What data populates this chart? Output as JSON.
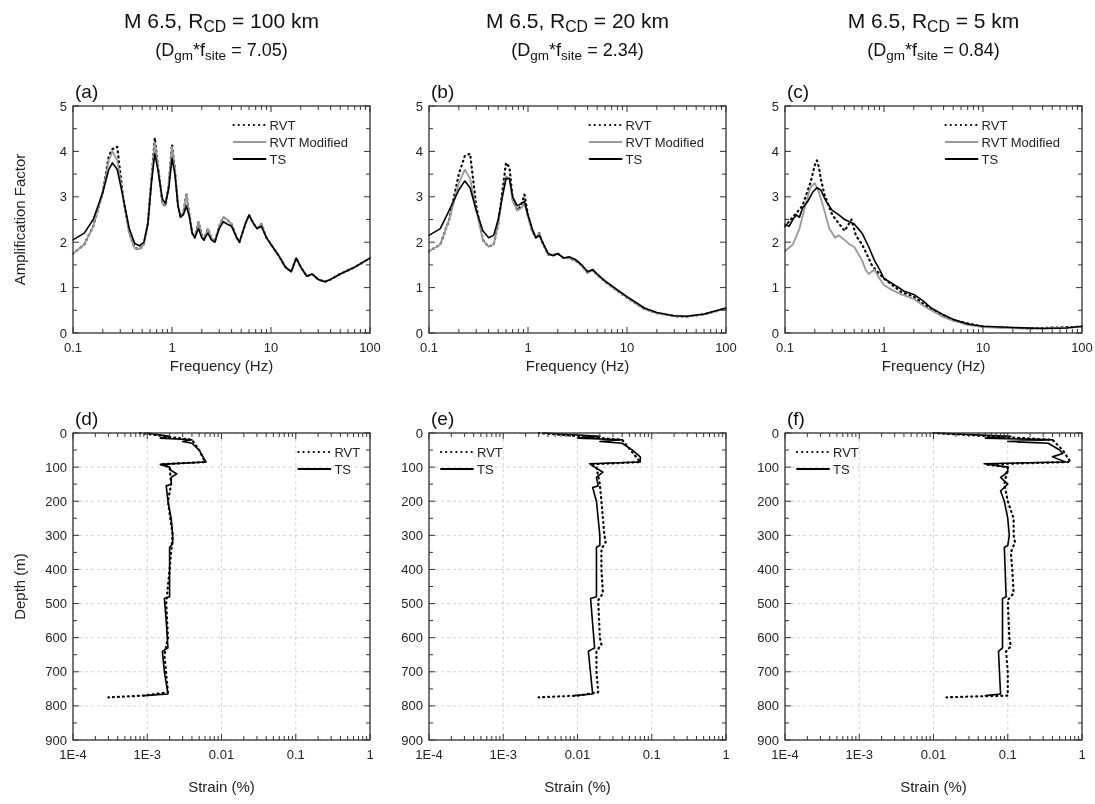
{
  "chart_data": [
    {
      "type": "line",
      "title": "M 6.5, R$_{CD}$ = 100 km",
      "subtitle": "(D$_{gm}$*f$_{site}$ = 7.05)",
      "annotations": [
        "(a)"
      ],
      "xlabel": "Frequency (Hz)",
      "ylabel": "Amplification Factor",
      "log": "x",
      "legend": "top right",
      "xlim": [
        0.1,
        100
      ],
      "ylim": [
        0,
        5
      ],
      "xticks": [
        0.1,
        {
          "value": 0.2,
          "label": null
        },
        {
          "value": 0.3,
          "label": null
        },
        {
          "value": 0.4,
          "label": null
        },
        {
          "value": 0.5,
          "label": null
        },
        {
          "value": 0.6,
          "label": null
        },
        {
          "value": 0.7,
          "label": null
        },
        {
          "value": 0.8,
          "label": null
        },
        {
          "value": 0.9,
          "label": null
        },
        1,
        {
          "value": 2,
          "label": null
        },
        {
          "value": 3,
          "label": null
        },
        {
          "value": 4,
          "label": null
        },
        {
          "value": 5,
          "label": null
        },
        {
          "value": 6,
          "label": null
        },
        {
          "value": 7,
          "label": null
        },
        {
          "value": 8,
          "label": null
        },
        {
          "value": 9,
          "label": null
        },
        10,
        {
          "value": 20,
          "label": null
        },
        {
          "value": 30,
          "label": null
        },
        {
          "value": 40,
          "label": null
        },
        {
          "value": 50,
          "label": null
        },
        {
          "value": 60,
          "label": null
        },
        {
          "value": 70,
          "label": null
        },
        {
          "value": 80,
          "label": null
        },
        {
          "value": 90,
          "label": null
        },
        100
      ],
      "yticks": [
        0,
        {
          "value": 0.5,
          "label": null
        },
        1,
        {
          "value": 1.5,
          "label": null
        },
        2,
        {
          "value": 2.5,
          "label": null
        },
        3,
        {
          "value": 3.5,
          "label": null
        },
        4,
        {
          "value": 4.5,
          "label": null
        },
        5
      ],
      "series": [
        {
          "name": "RVT",
          "color": "#000000",
          "line_style": "dotted",
          "x": [
            0.1,
            0.13,
            0.16,
            0.2,
            0.23,
            0.25,
            0.28,
            0.32,
            0.37,
            0.42,
            0.47,
            0.52,
            0.57,
            0.62,
            0.67,
            0.72,
            0.8,
            0.86,
            0.93,
            1,
            1.07,
            1.15,
            1.22,
            1.3,
            1.4,
            1.5,
            1.6,
            1.7,
            1.85,
            2,
            2.1,
            2.3,
            2.5,
            2.7,
            3,
            3.3,
            3.6,
            4,
            4.5,
            4.8,
            5.5,
            6,
            6.5,
            7.2,
            8,
            9,
            10,
            12,
            14,
            16,
            18,
            20,
            23,
            26,
            30,
            35,
            40,
            50,
            70,
            100
          ],
          "values": [
            1.75,
            1.95,
            2.35,
            3.1,
            3.9,
            4.05,
            4.1,
            3.0,
            2.2,
            1.87,
            1.85,
            1.95,
            2.4,
            3.4,
            4.3,
            3.7,
            2.85,
            2.8,
            3.3,
            4.15,
            3.6,
            2.8,
            2.55,
            2.65,
            3.05,
            2.6,
            2.2,
            2.1,
            2.45,
            2.15,
            2.05,
            2.3,
            2.1,
            2.0,
            2.35,
            2.55,
            2.5,
            2.4,
            2.1,
            2.0,
            2.4,
            2.6,
            2.45,
            2.3,
            2.4,
            2.1,
            1.95,
            1.7,
            1.45,
            1.35,
            1.65,
            1.45,
            1.25,
            1.3,
            1.18,
            1.13,
            1.18,
            1.3,
            1.45,
            1.65
          ]
        },
        {
          "name": "RVT Modified",
          "color": "#999999",
          "line_style": "solid",
          "x": [
            0.1,
            0.13,
            0.16,
            0.2,
            0.23,
            0.25,
            0.28,
            0.32,
            0.37,
            0.42,
            0.47,
            0.52,
            0.57,
            0.62,
            0.67,
            0.72,
            0.8,
            0.86,
            0.93,
            1,
            1.07,
            1.15,
            1.22,
            1.3,
            1.4,
            1.5,
            1.6,
            1.7,
            1.85,
            2,
            2.1,
            2.3,
            2.5,
            2.7,
            3,
            3.3,
            3.6,
            4,
            4.5,
            4.8,
            5.5,
            6,
            6.5,
            7.2,
            8,
            9,
            10,
            12,
            14,
            16,
            18,
            20,
            23,
            26,
            30,
            35,
            40,
            50,
            70,
            100
          ],
          "values": [
            1.75,
            1.95,
            2.35,
            3.1,
            3.8,
            4.0,
            3.8,
            3.0,
            2.2,
            1.87,
            1.85,
            1.95,
            2.4,
            3.4,
            4.2,
            3.7,
            2.85,
            2.8,
            3.3,
            4.1,
            3.6,
            2.8,
            2.55,
            2.65,
            3.05,
            2.6,
            2.2,
            2.1,
            2.45,
            2.15,
            2.05,
            2.3,
            2.1,
            2.0,
            2.35,
            2.55,
            2.5,
            2.4,
            2.1,
            2.0,
            2.4,
            2.6,
            2.45,
            2.3,
            2.4,
            2.1,
            1.95,
            1.7,
            1.45,
            1.35,
            1.65,
            1.45,
            1.25,
            1.3,
            1.18,
            1.13,
            1.18,
            1.3,
            1.45,
            1.65
          ]
        },
        {
          "name": "TS",
          "color": "#000000",
          "line_style": "solid",
          "x": [
            0.1,
            0.13,
            0.16,
            0.2,
            0.23,
            0.25,
            0.28,
            0.32,
            0.37,
            0.42,
            0.47,
            0.52,
            0.57,
            0.62,
            0.67,
            0.72,
            0.8,
            0.86,
            0.93,
            1,
            1.07,
            1.15,
            1.22,
            1.3,
            1.4,
            1.5,
            1.6,
            1.7,
            1.85,
            2,
            2.1,
            2.3,
            2.5,
            2.7,
            3,
            3.3,
            3.6,
            4,
            4.5,
            4.8,
            5.5,
            6,
            6.5,
            7.2,
            8,
            9,
            10,
            12,
            14,
            16,
            18,
            20,
            23,
            26,
            30,
            35,
            40,
            50,
            70,
            100
          ],
          "values": [
            2.05,
            2.2,
            2.5,
            3.1,
            3.6,
            3.75,
            3.6,
            3.0,
            2.3,
            1.97,
            1.92,
            2.0,
            2.4,
            3.3,
            3.95,
            3.6,
            2.95,
            2.85,
            3.2,
            3.85,
            3.5,
            2.8,
            2.55,
            2.6,
            2.8,
            2.55,
            2.2,
            2.1,
            2.3,
            2.1,
            2.05,
            2.2,
            2.05,
            2.0,
            2.3,
            2.45,
            2.4,
            2.35,
            2.1,
            2.0,
            2.4,
            2.6,
            2.45,
            2.3,
            2.35,
            2.1,
            1.95,
            1.7,
            1.45,
            1.35,
            1.65,
            1.45,
            1.25,
            1.3,
            1.18,
            1.13,
            1.18,
            1.3,
            1.45,
            1.65
          ]
        }
      ]
    },
    {
      "type": "line",
      "title": "M 6.5, R$_{CD}$ = 20 km",
      "subtitle": "(D$_{gm}$*f$_{site}$ = 2.34)",
      "annotations": [
        "(b)"
      ],
      "xlabel": "Frequency (Hz)",
      "log": "x",
      "legend": "top right",
      "xlim": [
        0.1,
        100
      ],
      "ylim": [
        0,
        5
      ],
      "xticks": [
        0.1,
        {
          "value": 0.2,
          "label": null
        },
        {
          "value": 0.3,
          "label": null
        },
        {
          "value": 0.4,
          "label": null
        },
        {
          "value": 0.5,
          "label": null
        },
        {
          "value": 0.6,
          "label": null
        },
        {
          "value": 0.7,
          "label": null
        },
        {
          "value": 0.8,
          "label": null
        },
        {
          "value": 0.9,
          "label": null
        },
        1,
        {
          "value": 2,
          "label": null
        },
        {
          "value": 3,
          "label": null
        },
        {
          "value": 4,
          "label": null
        },
        {
          "value": 5,
          "label": null
        },
        {
          "value": 6,
          "label": null
        },
        {
          "value": 7,
          "label": null
        },
        {
          "value": 8,
          "label": null
        },
        {
          "value": 9,
          "label": null
        },
        10,
        {
          "value": 20,
          "label": null
        },
        {
          "value": 30,
          "label": null
        },
        {
          "value": 40,
          "label": null
        },
        {
          "value": 50,
          "label": null
        },
        {
          "value": 60,
          "label": null
        },
        {
          "value": 70,
          "label": null
        },
        {
          "value": 80,
          "label": null
        },
        {
          "value": 90,
          "label": null
        },
        100
      ],
      "yticks": [
        0,
        {
          "value": 0.5,
          "label": null
        },
        1,
        {
          "value": 1.5,
          "label": null
        },
        2,
        {
          "value": 2.5,
          "label": null
        },
        3,
        {
          "value": 3.5,
          "label": null
        },
        4,
        {
          "value": 4.5,
          "label": null
        },
        5
      ],
      "series": [
        {
          "name": "RVT",
          "color": "#000000",
          "line_style": "dotted",
          "x": [
            0.1,
            0.13,
            0.16,
            0.2,
            0.23,
            0.26,
            0.3,
            0.35,
            0.4,
            0.45,
            0.5,
            0.55,
            0.6,
            0.65,
            0.7,
            0.78,
            0.85,
            0.92,
            1,
            1.1,
            1.2,
            1.3,
            1.4,
            1.6,
            1.8,
            2,
            2.3,
            2.6,
            3,
            3.5,
            4,
            4.5,
            5,
            6,
            8,
            10,
            15,
            20,
            30,
            40,
            60,
            100
          ],
          "values": [
            1.8,
            1.95,
            2.5,
            3.5,
            3.9,
            3.95,
            2.8,
            2.05,
            1.9,
            1.95,
            2.4,
            3.1,
            3.75,
            3.65,
            2.95,
            2.7,
            2.8,
            3.05,
            2.6,
            2.25,
            2.1,
            2.2,
            2.0,
            1.72,
            1.72,
            1.75,
            1.65,
            1.65,
            1.6,
            1.48,
            1.33,
            1.38,
            1.28,
            1.13,
            0.93,
            0.78,
            0.53,
            0.44,
            0.37,
            0.36,
            0.41,
            0.54
          ]
        },
        {
          "name": "RVT Modified",
          "color": "#999999",
          "line_style": "solid",
          "x": [
            0.1,
            0.13,
            0.16,
            0.2,
            0.23,
            0.26,
            0.3,
            0.35,
            0.4,
            0.45,
            0.5,
            0.55,
            0.6,
            0.65,
            0.7,
            0.78,
            0.85,
            0.92,
            1,
            1.1,
            1.2,
            1.3,
            1.4,
            1.6,
            1.8,
            2,
            2.3,
            2.6,
            3,
            3.5,
            4,
            4.5,
            5,
            6,
            8,
            10,
            15,
            20,
            30,
            40,
            60,
            100
          ],
          "values": [
            1.8,
            1.95,
            2.5,
            3.3,
            3.6,
            3.4,
            2.7,
            2.05,
            1.9,
            1.95,
            2.4,
            3.0,
            3.45,
            3.4,
            2.9,
            2.7,
            2.75,
            2.85,
            2.55,
            2.25,
            2.1,
            2.2,
            2.0,
            1.72,
            1.72,
            1.75,
            1.65,
            1.65,
            1.6,
            1.48,
            1.33,
            1.38,
            1.28,
            1.13,
            0.93,
            0.78,
            0.53,
            0.44,
            0.37,
            0.36,
            0.41,
            0.54
          ]
        },
        {
          "name": "TS",
          "color": "#000000",
          "line_style": "solid",
          "x": [
            0.1,
            0.13,
            0.16,
            0.2,
            0.23,
            0.26,
            0.3,
            0.35,
            0.4,
            0.45,
            0.5,
            0.55,
            0.6,
            0.65,
            0.7,
            0.78,
            0.85,
            0.92,
            1,
            1.1,
            1.2,
            1.3,
            1.4,
            1.6,
            1.8,
            2,
            2.3,
            2.6,
            3,
            3.5,
            4,
            4.5,
            5,
            6,
            8,
            10,
            15,
            20,
            30,
            40,
            60,
            100
          ],
          "values": [
            2.15,
            2.3,
            2.7,
            3.15,
            3.35,
            3.2,
            2.7,
            2.25,
            2.1,
            2.15,
            2.5,
            3.0,
            3.4,
            3.4,
            3.0,
            2.8,
            2.85,
            2.9,
            2.6,
            2.3,
            2.1,
            2.15,
            2.0,
            1.75,
            1.7,
            1.75,
            1.65,
            1.68,
            1.62,
            1.5,
            1.35,
            1.4,
            1.3,
            1.15,
            0.95,
            0.8,
            0.55,
            0.45,
            0.38,
            0.37,
            0.42,
            0.55
          ]
        }
      ]
    },
    {
      "type": "line",
      "title": "M 6.5, R$_{CD}$ = 5 km",
      "subtitle": "(D$_{gm}$*f$_{site}$ = 0.84)",
      "annotations": [
        "(c)"
      ],
      "xlabel": "Frequency (Hz)",
      "log": "x",
      "legend": "top right",
      "xlim": [
        0.1,
        100
      ],
      "ylim": [
        0,
        5
      ],
      "xticks": [
        0.1,
        {
          "value": 0.2,
          "label": null
        },
        {
          "value": 0.3,
          "label": null
        },
        {
          "value": 0.4,
          "label": null
        },
        {
          "value": 0.5,
          "label": null
        },
        {
          "value": 0.6,
          "label": null
        },
        {
          "value": 0.7,
          "label": null
        },
        {
          "value": 0.8,
          "label": null
        },
        {
          "value": 0.9,
          "label": null
        },
        1,
        {
          "value": 2,
          "label": null
        },
        {
          "value": 3,
          "label": null
        },
        {
          "value": 4,
          "label": null
        },
        {
          "value": 5,
          "label": null
        },
        {
          "value": 6,
          "label": null
        },
        {
          "value": 7,
          "label": null
        },
        {
          "value": 8,
          "label": null
        },
        {
          "value": 9,
          "label": null
        },
        10,
        {
          "value": 20,
          "label": null
        },
        {
          "value": 30,
          "label": null
        },
        {
          "value": 40,
          "label": null
        },
        {
          "value": 50,
          "label": null
        },
        {
          "value": 60,
          "label": null
        },
        {
          "value": 70,
          "label": null
        },
        {
          "value": 80,
          "label": null
        },
        {
          "value": 90,
          "label": null
        },
        100
      ],
      "yticks": [
        0,
        {
          "value": 0.5,
          "label": null
        },
        1,
        {
          "value": 1.5,
          "label": null
        },
        2,
        {
          "value": 2.5,
          "label": null
        },
        3,
        {
          "value": 3.5,
          "label": null
        },
        4,
        {
          "value": 4.5,
          "label": null
        },
        5
      ],
      "series": [
        {
          "name": "RVT",
          "color": "#000000",
          "line_style": "dotted",
          "x": [
            0.1,
            0.15,
            0.18,
            0.19,
            0.2,
            0.21,
            0.22,
            0.23,
            0.25,
            0.3,
            0.4,
            0.47,
            0.52,
            0.6,
            0.7,
            0.75,
            0.9,
            1,
            1.5,
            2,
            3,
            5,
            10,
            30,
            100
          ],
          "values": [
            2.35,
            2.8,
            3.3,
            3.5,
            3.7,
            3.8,
            3.65,
            3.4,
            3.05,
            2.6,
            2.25,
            2.5,
            2.15,
            1.95,
            1.65,
            1.5,
            1.3,
            1.2,
            0.9,
            0.8,
            0.52,
            0.28,
            0.14,
            0.1,
            0.14
          ]
        },
        {
          "name": "RVT Modified",
          "color": "#999999",
          "line_style": "solid",
          "x": [
            0.1,
            0.12,
            0.14,
            0.16,
            0.18,
            0.2,
            0.22,
            0.25,
            0.28,
            0.32,
            0.35,
            0.4,
            0.45,
            0.5,
            0.6,
            0.65,
            0.7,
            0.8,
            0.9,
            1,
            1.2,
            1.5,
            2,
            2.5,
            3,
            4,
            5,
            7,
            10,
            20,
            40,
            100
          ],
          "values": [
            1.8,
            1.95,
            2.3,
            2.8,
            3.2,
            3.3,
            3.1,
            2.7,
            2.3,
            2.1,
            2.15,
            2.05,
            1.95,
            1.9,
            1.6,
            1.4,
            1.3,
            1.4,
            1.2,
            1.05,
            0.95,
            0.85,
            0.75,
            0.6,
            0.5,
            0.35,
            0.27,
            0.18,
            0.13,
            0.1,
            0.1,
            0.13
          ]
        },
        {
          "name": "TS",
          "color": "#000000",
          "line_style": "solid",
          "x": [
            0.1,
            0.11,
            0.12,
            0.13,
            0.14,
            0.15,
            0.17,
            0.19,
            0.21,
            0.23,
            0.26,
            0.3,
            0.35,
            0.4,
            0.45,
            0.5,
            0.6,
            0.7,
            0.8,
            0.9,
            1,
            1.3,
            1.6,
            2,
            2.5,
            3,
            4,
            5,
            7,
            10,
            20,
            40,
            70,
            100
          ],
          "values": [
            2.4,
            2.35,
            2.5,
            2.6,
            2.55,
            2.75,
            2.9,
            3.1,
            3.2,
            3.15,
            2.9,
            2.7,
            2.6,
            2.5,
            2.45,
            2.4,
            2.2,
            1.9,
            1.6,
            1.4,
            1.2,
            1.05,
            0.92,
            0.85,
            0.7,
            0.55,
            0.4,
            0.3,
            0.2,
            0.15,
            0.12,
            0.1,
            0.11,
            0.15
          ]
        }
      ]
    },
    {
      "type": "line",
      "annotations": [
        "(d)"
      ],
      "xlabel": "Strain (%)",
      "ylabel": "Depth (m)",
      "log": "x",
      "legend": "top right",
      "grid": true,
      "xlim": [
        0.0001,
        1
      ],
      "ylim": [
        900,
        0
      ],
      "xticks": [
        {
          "value": 0.0001,
          "label": "1E-4"
        },
        {
          "value": 0.0002,
          "label": null
        },
        {
          "value": 0.0003,
          "label": null
        },
        {
          "value": 0.0004,
          "label": null
        },
        {
          "value": 0.0005,
          "label": null
        },
        {
          "value": 0.0006,
          "label": null
        },
        {
          "value": 0.0007,
          "label": null
        },
        {
          "value": 0.0008,
          "label": null
        },
        {
          "value": 0.0009,
          "label": null
        },
        {
          "value": 0.001,
          "label": "1E-3"
        },
        {
          "value": 0.002,
          "label": null
        },
        {
          "value": 0.003,
          "label": null
        },
        {
          "value": 0.004,
          "label": null
        },
        {
          "value": 0.005,
          "label": null
        },
        {
          "value": 0.006,
          "label": null
        },
        {
          "value": 0.007,
          "label": null
        },
        {
          "value": 0.008,
          "label": null
        },
        {
          "value": 0.009,
          "label": null
        },
        0.01,
        {
          "value": 0.02,
          "label": null
        },
        {
          "value": 0.03,
          "label": null
        },
        {
          "value": 0.04,
          "label": null
        },
        {
          "value": 0.05,
          "label": null
        },
        {
          "value": 0.06,
          "label": null
        },
        {
          "value": 0.07,
          "label": null
        },
        {
          "value": 0.08,
          "label": null
        },
        {
          "value": 0.09,
          "label": null
        },
        0.1,
        {
          "value": 0.2,
          "label": null
        },
        {
          "value": 0.3,
          "label": null
        },
        {
          "value": 0.4,
          "label": null
        },
        {
          "value": 0.5,
          "label": null
        },
        {
          "value": 0.6,
          "label": null
        },
        {
          "value": 0.7,
          "label": null
        },
        {
          "value": 0.8,
          "label": null
        },
        {
          "value": 0.9,
          "label": null
        },
        1
      ],
      "yticks": [
        0,
        {
          "value": 50,
          "label": null
        },
        100,
        {
          "value": 150,
          "label": null
        },
        200,
        {
          "value": 250,
          "label": null
        },
        300,
        {
          "value": 350,
          "label": null
        },
        400,
        {
          "value": 450,
          "label": null
        },
        500,
        {
          "value": 550,
          "label": null
        },
        600,
        {
          "value": 650,
          "label": null
        },
        700,
        {
          "value": 750,
          "label": null
        },
        800,
        {
          "value": 850,
          "label": null
        },
        900
      ],
      "series": [
        {
          "name": "RVT",
          "color": "#000000",
          "line_style": "dotted",
          "x": [
            0.0008,
            0.004,
            0.005,
            0.006,
            0.0015,
            0.002,
            0.0021,
            0.0019,
            0.0022,
            0.002,
            0.0018,
            0.0019,
            0.0017,
            0.0019,
            0.0009,
            0.0003
          ],
          "values": [
            0,
            20,
            50,
            85,
            92,
            100,
            150,
            200,
            300,
            400,
            500,
            600,
            650,
            760,
            770,
            775
          ]
        },
        {
          "name": "TS",
          "color": "#000000",
          "line_style": "solid",
          "x": [
            0.001,
            0.002,
            0.0015,
            0.004,
            0.003,
            0.004,
            0.005,
            0.006,
            0.0062,
            0.0015,
            0.002,
            0.0021,
            0.0025,
            0.0021,
            0.0021,
            0.0018,
            0.0019,
            0.0021,
            0.0022,
            0.0022,
            0.002,
            0.002,
            0.0017,
            0.0018,
            0.0019,
            0.0016,
            0.0017,
            0.0019,
            0.0009
          ],
          "values": [
            0,
            10,
            15,
            20,
            25,
            30,
            50,
            80,
            85,
            92,
            100,
            110,
            120,
            130,
            150,
            155,
            200,
            250,
            300,
            325,
            335,
            480,
            485,
            550,
            630,
            640,
            700,
            765,
            770
          ]
        }
      ]
    },
    {
      "type": "line",
      "annotations": [
        "(e)"
      ],
      "xlabel": "Strain (%)",
      "log": "x",
      "legend": "top left",
      "grid": true,
      "xlim": [
        0.0001,
        1
      ],
      "ylim": [
        900,
        0
      ],
      "xticks": [
        {
          "value": 0.0001,
          "label": "1E-4"
        },
        {
          "value": 0.0002,
          "label": null
        },
        {
          "value": 0.0003,
          "label": null
        },
        {
          "value": 0.0004,
          "label": null
        },
        {
          "value": 0.0005,
          "label": null
        },
        {
          "value": 0.0006,
          "label": null
        },
        {
          "value": 0.0007,
          "label": null
        },
        {
          "value": 0.0008,
          "label": null
        },
        {
          "value": 0.0009,
          "label": null
        },
        {
          "value": 0.001,
          "label": "1E-3"
        },
        {
          "value": 0.002,
          "label": null
        },
        {
          "value": 0.003,
          "label": null
        },
        {
          "value": 0.004,
          "label": null
        },
        {
          "value": 0.005,
          "label": null
        },
        {
          "value": 0.006,
          "label": null
        },
        {
          "value": 0.007,
          "label": null
        },
        {
          "value": 0.008,
          "label": null
        },
        {
          "value": 0.009,
          "label": null
        },
        0.01,
        {
          "value": 0.02,
          "label": null
        },
        {
          "value": 0.03,
          "label": null
        },
        {
          "value": 0.04,
          "label": null
        },
        {
          "value": 0.05,
          "label": null
        },
        {
          "value": 0.06,
          "label": null
        },
        {
          "value": 0.07,
          "label": null
        },
        {
          "value": 0.08,
          "label": null
        },
        {
          "value": 0.09,
          "label": null
        },
        0.1,
        {
          "value": 0.2,
          "label": null
        },
        {
          "value": 0.3,
          "label": null
        },
        {
          "value": 0.4,
          "label": null
        },
        {
          "value": 0.5,
          "label": null
        },
        {
          "value": 0.6,
          "label": null
        },
        {
          "value": 0.7,
          "label": null
        },
        {
          "value": 0.8,
          "label": null
        },
        {
          "value": 0.9,
          "label": null
        },
        1
      ],
      "yticks": [
        0,
        {
          "value": 50,
          "label": null
        },
        100,
        {
          "value": 150,
          "label": null
        },
        200,
        {
          "value": 250,
          "label": null
        },
        300,
        {
          "value": 350,
          "label": null
        },
        400,
        {
          "value": 450,
          "label": null
        },
        500,
        {
          "value": 550,
          "label": null
        },
        600,
        {
          "value": 650,
          "label": null
        },
        700,
        {
          "value": 750,
          "label": null
        },
        800,
        {
          "value": 850,
          "label": null
        },
        900
      ],
      "series": [
        {
          "name": "RVT",
          "color": "#000000",
          "line_style": "dotted",
          "x": [
            0.003,
            0.04,
            0.07,
            0.015,
            0.018,
            0.02,
            0.021,
            0.022,
            0.023,
            0.024,
            0.021,
            0.021,
            0.022,
            0.019,
            0.02,
            0.021,
            0.018,
            0.018,
            0.019,
            0.01,
            0.003
          ],
          "values": [
            0,
            20,
            85,
            92,
            100,
            150,
            200,
            250,
            300,
            320,
            340,
            400,
            470,
            490,
            600,
            620,
            640,
            700,
            760,
            770,
            775
          ]
        },
        {
          "name": "TS",
          "color": "#000000",
          "line_style": "solid",
          "x": [
            0.0036,
            0.02,
            0.01,
            0.04,
            0.02,
            0.04,
            0.055,
            0.07,
            0.07,
            0.0145,
            0.017,
            0.022,
            0.018,
            0.019,
            0.016,
            0.018,
            0.02,
            0.02,
            0.018,
            0.018,
            0.015,
            0.017,
            0.014,
            0.016,
            0.009
          ],
          "values": [
            0,
            10,
            15,
            20,
            25,
            30,
            50,
            70,
            85,
            90,
            100,
            115,
            130,
            155,
            160,
            200,
            300,
            330,
            335,
            480,
            485,
            630,
            640,
            765,
            770
          ]
        }
      ]
    },
    {
      "type": "line",
      "annotations": [
        "(f)"
      ],
      "xlabel": "Strain (%)",
      "log": "x",
      "legend": "top left",
      "grid": true,
      "xlim": [
        0.0001,
        1
      ],
      "ylim": [
        900,
        0
      ],
      "xticks": [
        {
          "value": 0.0001,
          "label": "1E-4"
        },
        {
          "value": 0.0002,
          "label": null
        },
        {
          "value": 0.0003,
          "label": null
        },
        {
          "value": 0.0004,
          "label": null
        },
        {
          "value": 0.0005,
          "label": null
        },
        {
          "value": 0.0006,
          "label": null
        },
        {
          "value": 0.0007,
          "label": null
        },
        {
          "value": 0.0008,
          "label": null
        },
        {
          "value": 0.0009,
          "label": null
        },
        {
          "value": 0.001,
          "label": "1E-3"
        },
        {
          "value": 0.002,
          "label": null
        },
        {
          "value": 0.003,
          "label": null
        },
        {
          "value": 0.004,
          "label": null
        },
        {
          "value": 0.005,
          "label": null
        },
        {
          "value": 0.006,
          "label": null
        },
        {
          "value": 0.007,
          "label": null
        },
        {
          "value": 0.008,
          "label": null
        },
        {
          "value": 0.009,
          "label": null
        },
        0.01,
        {
          "value": 0.02,
          "label": null
        },
        {
          "value": 0.03,
          "label": null
        },
        {
          "value": 0.04,
          "label": null
        },
        {
          "value": 0.05,
          "label": null
        },
        {
          "value": 0.06,
          "label": null
        },
        {
          "value": 0.07,
          "label": null
        },
        {
          "value": 0.08,
          "label": null
        },
        {
          "value": 0.09,
          "label": null
        },
        0.1,
        {
          "value": 0.2,
          "label": null
        },
        {
          "value": 0.3,
          "label": null
        },
        {
          "value": 0.4,
          "label": null
        },
        {
          "value": 0.5,
          "label": null
        },
        {
          "value": 0.6,
          "label": null
        },
        {
          "value": 0.7,
          "label": null
        },
        {
          "value": 0.8,
          "label": null
        },
        {
          "value": 0.9,
          "label": null
        },
        1
      ],
      "yticks": [
        0,
        {
          "value": 50,
          "label": null
        },
        100,
        {
          "value": 150,
          "label": null
        },
        200,
        {
          "value": 250,
          "label": null
        },
        300,
        {
          "value": 350,
          "label": null
        },
        400,
        {
          "value": 450,
          "label": null
        },
        500,
        {
          "value": 550,
          "label": null
        },
        600,
        {
          "value": 650,
          "label": null
        },
        700,
        {
          "value": 750,
          "label": null
        },
        800,
        {
          "value": 850,
          "label": null
        },
        900
      ],
      "series": [
        {
          "name": "RVT",
          "color": "#000000",
          "line_style": "dotted",
          "x": [
            0.01,
            0.4,
            0.55,
            0.7,
            0.05,
            0.1,
            0.09,
            0.1,
            0.12,
            0.12,
            0.125,
            0.11,
            0.115,
            0.12,
            0.1,
            0.105,
            0.11,
            0.095,
            0.1,
            0.1,
            0.04,
            0.015
          ],
          "values": [
            0,
            20,
            50,
            85,
            92,
            100,
            150,
            200,
            250,
            300,
            320,
            350,
            400,
            470,
            490,
            600,
            625,
            640,
            700,
            770,
            772,
            775
          ]
        },
        {
          "name": "TS",
          "color": "#000000",
          "line_style": "solid",
          "x": [
            0.01,
            0.11,
            0.05,
            0.4,
            0.1,
            0.35,
            0.5,
            0.55,
            0.4,
            0.6,
            0.048,
            0.1,
            0.1,
            0.08,
            0.1,
            0.08,
            0.09,
            0.1,
            0.105,
            0.1,
            0.09,
            0.095,
            0.085,
            0.085,
            0.075,
            0.08,
            0.05
          ],
          "values": [
            0,
            10,
            15,
            20,
            25,
            30,
            50,
            60,
            70,
            85,
            90,
            100,
            115,
            130,
            150,
            170,
            200,
            250,
            300,
            330,
            335,
            480,
            485,
            630,
            640,
            765,
            770
          ]
        }
      ]
    }
  ]
}
